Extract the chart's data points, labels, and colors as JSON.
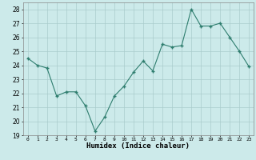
{
  "x": [
    0,
    1,
    2,
    3,
    4,
    5,
    6,
    7,
    8,
    9,
    10,
    11,
    12,
    13,
    14,
    15,
    16,
    17,
    18,
    19,
    20,
    21,
    22,
    23
  ],
  "y": [
    24.5,
    24.0,
    23.8,
    21.8,
    22.1,
    22.1,
    21.1,
    19.3,
    20.3,
    21.8,
    22.5,
    23.5,
    24.3,
    23.6,
    25.5,
    25.3,
    25.4,
    28.0,
    26.8,
    26.8,
    27.0,
    26.0,
    25.0,
    23.9
  ],
  "xlabel": "Humidex (Indice chaleur)",
  "line_color": "#2e7d6e",
  "marker_color": "#2e7d6e",
  "bg_color": "#cceaea",
  "grid_color": "#aacccc",
  "ylim": [
    19,
    28.5
  ],
  "yticks": [
    19,
    20,
    21,
    22,
    23,
    24,
    25,
    26,
    27,
    28
  ],
  "xticks": [
    0,
    1,
    2,
    3,
    4,
    5,
    6,
    7,
    8,
    9,
    10,
    11,
    12,
    13,
    14,
    15,
    16,
    17,
    18,
    19,
    20,
    21,
    22,
    23
  ],
  "xtick_labels": [
    "0",
    "1",
    "2",
    "3",
    "4",
    "5",
    "6",
    "7",
    "8",
    "9",
    "10",
    "11",
    "12",
    "13",
    "14",
    "15",
    "16",
    "17",
    "18",
    "19",
    "20",
    "21",
    "22",
    "23"
  ]
}
